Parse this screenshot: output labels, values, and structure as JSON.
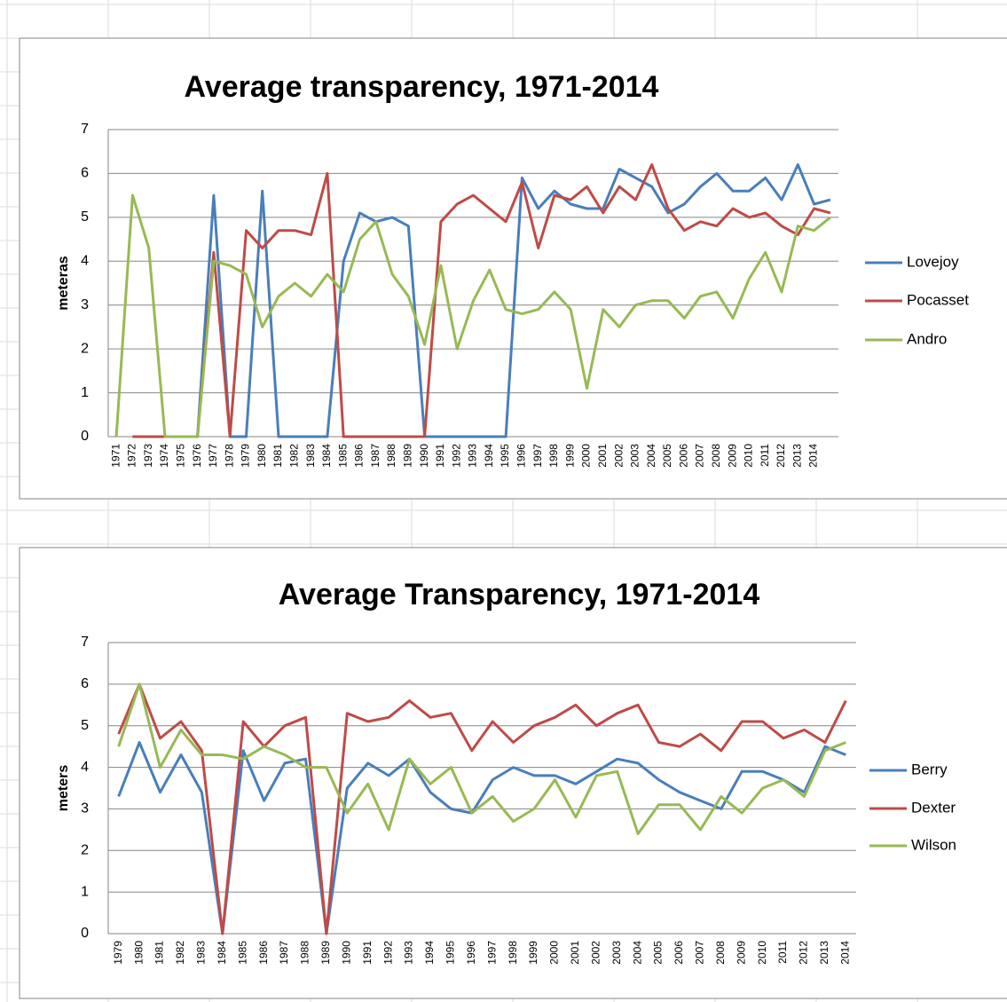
{
  "chart_data": [
    {
      "type": "line",
      "title": "Average transparency, 1971-2014",
      "y_label": "meteras",
      "categories": [
        "1971",
        "1972",
        "1973",
        "1974",
        "1975",
        "1976",
        "1977",
        "1978",
        "1979",
        "1980",
        "1981",
        "1982",
        "1983",
        "1984",
        "1985",
        "1986",
        "1987",
        "1988",
        "1989",
        "1990",
        "1991",
        "1992",
        "1993",
        "1994",
        "1995",
        "1996",
        "1997",
        "1998",
        "1999",
        "2000",
        "2001",
        "2002",
        "2003",
        "2004",
        "2005",
        "2006",
        "2007",
        "2008",
        "2009",
        "2010",
        "2011",
        "2012",
        "2013",
        "2014",
        null
      ],
      "series": [
        {
          "name": "Lovejoy",
          "color": "#4a7ebb",
          "values": [
            null,
            0,
            0,
            0,
            0,
            0,
            5.5,
            0,
            0,
            5.6,
            0,
            0,
            0,
            0,
            4.0,
            5.1,
            4.9,
            5.0,
            4.8,
            0,
            0,
            0,
            0,
            0,
            0,
            5.9,
            5.2,
            5.6,
            5.3,
            5.2,
            5.2,
            6.1,
            5.9,
            5.7,
            5.1,
            5.3,
            5.7,
            6.0,
            5.6,
            5.6,
            5.9,
            5.4,
            6.2,
            5.3,
            5.4
          ]
        },
        {
          "name": "Pocasset",
          "color": "#be4b48",
          "values": [
            null,
            0,
            0,
            0,
            0,
            0,
            4.2,
            0,
            4.7,
            4.3,
            4.7,
            4.7,
            4.6,
            6.0,
            0,
            0,
            0,
            0,
            0,
            0,
            4.9,
            5.3,
            5.5,
            5.2,
            4.9,
            5.8,
            4.3,
            5.5,
            5.4,
            5.7,
            5.1,
            5.7,
            5.4,
            6.2,
            5.2,
            4.7,
            4.9,
            4.8,
            5.2,
            5.0,
            5.1,
            4.8,
            4.6,
            5.2,
            5.1
          ]
        },
        {
          "name": "Andro",
          "color": "#98b954",
          "values": [
            0,
            5.5,
            4.3,
            0,
            0,
            0,
            4.0,
            3.9,
            3.7,
            2.5,
            3.2,
            3.5,
            3.2,
            3.7,
            3.3,
            4.5,
            4.9,
            3.7,
            3.2,
            2.1,
            3.9,
            2.0,
            3.1,
            3.8,
            2.9,
            2.8,
            2.9,
            3.3,
            2.9,
            1.1,
            2.9,
            2.5,
            3.0,
            3.1,
            3.1,
            2.7,
            3.2,
            3.3,
            2.7,
            3.6,
            4.2,
            3.3,
            4.8,
            4.7,
            5.0
          ]
        }
      ],
      "ylim": [
        0,
        7
      ],
      "yticks": [
        0,
        1,
        2,
        3,
        4,
        5,
        6,
        7
      ],
      "grid": true,
      "legend": "right"
    },
    {
      "type": "line",
      "title": "Average Transparency, 1971-2014",
      "y_label": "meters",
      "categories": [
        "1979",
        "1980",
        "1981",
        "1982",
        "1983",
        "1984",
        "1985",
        "1986",
        "1987",
        "1988",
        "1989",
        "1990",
        "1991",
        "1992",
        "1993",
        "1994",
        "1995",
        "1996",
        "1997",
        "1998",
        "1999",
        "2000",
        "2001",
        "2002",
        "2003",
        "2004",
        "2005",
        "2006",
        "2007",
        "2008",
        "2009",
        "2010",
        "2011",
        "2012",
        "2013",
        "2014"
      ],
      "series": [
        {
          "name": "Berry",
          "color": "#4a7ebb",
          "values": [
            3.3,
            4.6,
            3.4,
            4.3,
            3.4,
            0,
            4.4,
            3.2,
            4.1,
            4.2,
            0,
            3.5,
            4.1,
            3.8,
            4.2,
            3.4,
            3.0,
            2.9,
            3.7,
            4.0,
            3.8,
            3.8,
            3.6,
            3.9,
            4.2,
            4.1,
            3.7,
            3.4,
            3.2,
            3.0,
            3.9,
            3.9,
            3.7,
            3.4,
            4.5,
            4.3
          ]
        },
        {
          "name": "Dexter",
          "color": "#be4b48",
          "values": [
            4.8,
            6.0,
            4.7,
            5.1,
            4.4,
            0,
            5.1,
            4.5,
            5.0,
            5.2,
            0,
            5.3,
            5.1,
            5.2,
            5.6,
            5.2,
            5.3,
            4.4,
            5.1,
            4.6,
            5.0,
            5.2,
            5.5,
            5.0,
            5.3,
            5.5,
            4.6,
            4.5,
            4.8,
            4.4,
            5.1,
            5.1,
            4.7,
            4.9,
            4.6,
            5.6
          ]
        },
        {
          "name": "Wilson",
          "color": "#98b954",
          "values": [
            4.5,
            6.0,
            4.0,
            4.9,
            4.3,
            4.3,
            4.2,
            4.5,
            4.3,
            4.0,
            4.0,
            2.9,
            3.6,
            2.5,
            4.2,
            3.6,
            4.0,
            2.9,
            3.3,
            2.7,
            3.0,
            3.7,
            2.8,
            3.8,
            3.9,
            2.4,
            3.1,
            3.1,
            2.5,
            3.3,
            2.9,
            3.5,
            3.7,
            3.3,
            4.4,
            4.6
          ]
        }
      ],
      "ylim": [
        0,
        7
      ],
      "yticks": [
        0,
        1,
        2,
        3,
        4,
        5,
        6,
        7
      ],
      "grid": true,
      "legend": "right"
    }
  ]
}
